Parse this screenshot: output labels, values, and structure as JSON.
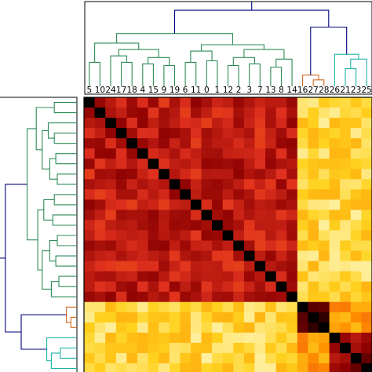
{
  "chart_data": {
    "type": "heatmap",
    "title": "",
    "colormap": {
      "name": "hot",
      "low": "#000000",
      "stops": [
        "#000000",
        "#8b0000",
        "#e0301e",
        "#ff8c00",
        "#ffd21e",
        "#ffffe6"
      ],
      "high": "#ffffe6"
    },
    "leaf_order": [
      "5",
      "10",
      "24",
      "17",
      "18",
      "4",
      "15",
      "9",
      "19",
      "6",
      "11",
      "0",
      "1",
      "12",
      "2",
      "3",
      "7",
      "13",
      "8",
      "14",
      "16",
      "27",
      "28",
      "26",
      "21",
      "23",
      "25"
    ],
    "visible_leaf_labels": [
      "5",
      "10",
      "24",
      "17",
      "18",
      "4",
      "15",
      "9",
      "19",
      "6",
      "11",
      "0",
      "1",
      "12",
      "2",
      "3",
      "7",
      "13",
      "8",
      "14",
      "16",
      "27",
      "28",
      "26",
      "21",
      "23",
      "25"
    ],
    "clusters": [
      {
        "name": "green",
        "color": "#2e8b57",
        "leaves": [
          "5",
          "10",
          "24",
          "17",
          "18",
          "4",
          "15",
          "9",
          "19",
          "6",
          "11",
          "0",
          "1",
          "12",
          "2",
          "3",
          "7",
          "13",
          "8",
          "14"
        ]
      },
      {
        "name": "red",
        "color": "#d2691e",
        "leaves": [
          "16",
          "27",
          "28"
        ]
      },
      {
        "name": "cyan",
        "color": "#20b2aa",
        "leaves": [
          "26",
          "21",
          "23",
          "25"
        ]
      }
    ],
    "link_color_root": "#000080",
    "block_levels": {
      "green_green": 0.32,
      "green_rest": 0.82,
      "red_red": 0.12,
      "red_cyan": 0.62,
      "cyan_cyan": 0.22,
      "diagonal": 0.0
    }
  }
}
